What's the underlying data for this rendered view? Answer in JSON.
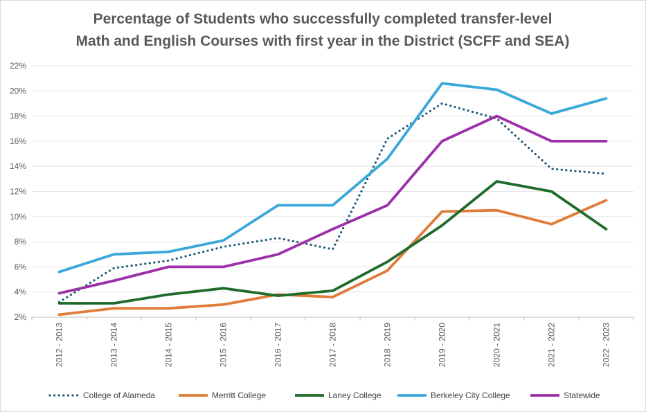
{
  "chart_data": {
    "type": "line",
    "title_lines": [
      "Percentage of Students who successfully completed transfer-level",
      "Math and English Courses with first year in the District (SCFF and SEA)"
    ],
    "categories": [
      "2012 - 2013",
      "2013 - 2014",
      "2014 - 2015",
      "2015 - 2016",
      "2016 - 2017",
      "2017 - 2018",
      "2018 - 2019",
      "2019 - 2020",
      "2020 - 2021",
      "2021 - 2022",
      "2022 - 2023"
    ],
    "ylim": [
      2,
      22
    ],
    "yticks": [
      2,
      4,
      6,
      8,
      10,
      12,
      14,
      16,
      18,
      20,
      22
    ],
    "ytick_labels": [
      "2%",
      "4%",
      "6%",
      "8%",
      "10%",
      "12%",
      "14%",
      "16%",
      "18%",
      "20%",
      "22%"
    ],
    "grid": "horizontal",
    "legend_position": "bottom",
    "series": [
      {
        "name": "College of Alameda",
        "color": "#1f5a7a",
        "dash": "dotted",
        "values": [
          3.2,
          5.9,
          6.5,
          7.6,
          8.3,
          7.4,
          16.2,
          19.0,
          17.8,
          13.8,
          13.4
        ]
      },
      {
        "name": "Merritt College",
        "color": "#e07b39",
        "dash": "solid",
        "values": [
          2.2,
          2.7,
          2.7,
          3.0,
          3.8,
          3.6,
          5.7,
          10.4,
          10.5,
          9.4,
          11.3
        ]
      },
      {
        "name": "Laney College",
        "color": "#1e6b2a",
        "dash": "solid",
        "values": [
          3.1,
          3.1,
          3.8,
          4.3,
          3.7,
          4.1,
          6.4,
          9.3,
          12.8,
          12.0,
          9.0
        ]
      },
      {
        "name": "Berkeley City College",
        "color": "#3aa8d8",
        "dash": "solid",
        "values": [
          5.6,
          7.0,
          7.2,
          8.1,
          10.9,
          10.9,
          14.6,
          20.6,
          20.1,
          18.2,
          19.4
        ]
      },
      {
        "name": "Statewide",
        "color": "#9b30a8",
        "dash": "solid",
        "values": [
          3.9,
          4.9,
          6.0,
          6.0,
          7.0,
          9.0,
          10.9,
          16.0,
          18.0,
          16.0,
          16.0
        ]
      }
    ]
  }
}
